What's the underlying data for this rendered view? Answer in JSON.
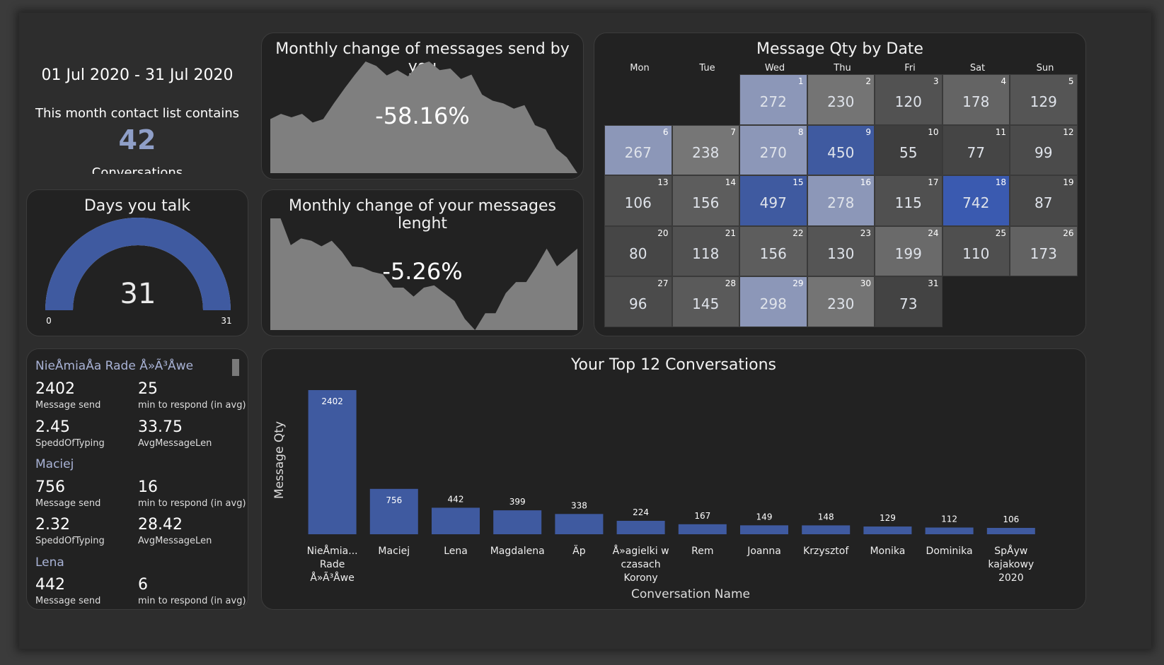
{
  "summary": {
    "period": "01 Jul 2020 - 31 Jul 2020",
    "contact_text": "This month contact list contains",
    "count": "42",
    "count_label": "Conversations"
  },
  "gauge": {
    "title": "Days you talk",
    "value": 31,
    "value_text": "31",
    "min": "0",
    "max": "31",
    "color": "#3f5aa0"
  },
  "sent_change": {
    "title": "Monthly change of messages send by you",
    "pct": "-58.16%"
  },
  "length_change": {
    "title": "Monthly change of your messages lenght",
    "pct": "-5.26%"
  },
  "calendar": {
    "title": "Message Qty by Date",
    "weekdays": [
      "Mon",
      "Tue",
      "Wed",
      "Thu",
      "Fri",
      "Sat",
      "Sun"
    ],
    "first_weekday": 2,
    "days": [
      272,
      230,
      120,
      178,
      129,
      267,
      238,
      270,
      450,
      55,
      77,
      99,
      106,
      156,
      497,
      278,
      115,
      742,
      87,
      80,
      118,
      156,
      130,
      199,
      110,
      173,
      96,
      145,
      298,
      230,
      73
    ],
    "colors": {
      "low": "#2a2a2a",
      "mid": "#6f6f6f",
      "highlight": "#3f5aa0",
      "accent": "#8c97b8"
    }
  },
  "contacts": [
    {
      "name": "NieÅmiaÅa Rade Å»Ã³Åwe",
      "message_send": "2402",
      "message_send_label": "Message send",
      "respond": "25",
      "respond_label": "min to respond (in avg)",
      "typing": "2.45",
      "typing_label": "SpeddOfTyping",
      "avg_len": "33.75",
      "avg_len_label": "AvgMessageLen"
    },
    {
      "name": "Maciej",
      "message_send": "756",
      "message_send_label": "Message send",
      "respond": "16",
      "respond_label": "min to respond (in avg)",
      "typing": "2.32",
      "typing_label": "SpeddOfTyping",
      "avg_len": "28.42",
      "avg_len_label": "AvgMessageLen"
    },
    {
      "name": "Lena",
      "message_send": "442",
      "message_send_label": "Message send",
      "respond": "6",
      "respond_label": "min to respond (in avg)"
    }
  ],
  "chart_data": [
    {
      "type": "bar",
      "title": "Your Top 12 Conversations",
      "xlabel": "Conversation Name",
      "ylabel": "Message Qty",
      "categories": [
        "NieÅmia... Rade Å»Ã³Åwe",
        "Maciej",
        "Lena",
        "Magdalena",
        "Äp",
        "Å»agielki w czasach Korony",
        "Rem",
        "Joanna",
        "Krzysztof",
        "Monika",
        "Dominika",
        "SpÅyw kajakowy 2020"
      ],
      "category_lines": [
        [
          "NieÅmia...",
          "Rade",
          "Å»Ã³Åwe"
        ],
        [
          "Maciej"
        ],
        [
          "Lena"
        ],
        [
          "Magdalena"
        ],
        [
          "Äp"
        ],
        [
          "Å»agielki w",
          "czasach",
          "Korony"
        ],
        [
          "Rem"
        ],
        [
          "Joanna"
        ],
        [
          "Krzysztof"
        ],
        [
          "Monika"
        ],
        [
          "Dominika"
        ],
        [
          "SpÅyw",
          "kajakowy",
          "2020"
        ]
      ],
      "values": [
        2402,
        756,
        442,
        399,
        338,
        224,
        167,
        149,
        148,
        129,
        112,
        106
      ],
      "ylim": [
        0,
        2402
      ],
      "color": "#3f5aa0",
      "grid": false
    },
    {
      "type": "area",
      "title": "Monthly change of messages send by you",
      "values": [
        62,
        68,
        64,
        68,
        58,
        62,
        80,
        97,
        113,
        128,
        123,
        112,
        118,
        111,
        124,
        128,
        118,
        120,
        108,
        113,
        90,
        83,
        80,
        74,
        78,
        55,
        50,
        28,
        18,
        0
      ],
      "color": "#7f7f7f"
    },
    {
      "type": "area",
      "title": "Monthly change of your messages lenght",
      "values": [
        100,
        100,
        76,
        82,
        80,
        75,
        80,
        70,
        57,
        56,
        52,
        50,
        38,
        38,
        30,
        38,
        40,
        33,
        26,
        10,
        0,
        15,
        15,
        33,
        43,
        43,
        57,
        73,
        57,
        65,
        73
      ],
      "color": "#7f7f7f"
    }
  ]
}
